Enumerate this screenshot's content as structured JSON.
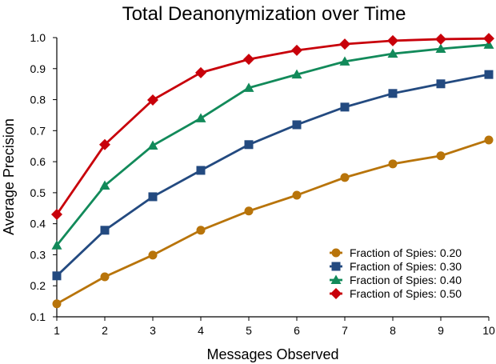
{
  "chart_data": {
    "type": "line",
    "title": "Total Deanonymization over Time",
    "xlabel": "Messages Observed",
    "ylabel": "Average Precision",
    "x": [
      1,
      2,
      3,
      4,
      5,
      6,
      7,
      8,
      9,
      10
    ],
    "xlim": [
      1,
      10
    ],
    "ylim": [
      0.1,
      1.0
    ],
    "xticks": [
      "1",
      "2",
      "3",
      "4",
      "5",
      "6",
      "7",
      "8",
      "9",
      "10"
    ],
    "yticks": [
      "0.1",
      "0.2",
      "0.3",
      "0.4",
      "0.5",
      "0.6",
      "0.7",
      "0.8",
      "0.9",
      "1.0"
    ],
    "grid": false,
    "legend_position": "bottom-right",
    "series": [
      {
        "name": "Fraction of Spies: 0.20",
        "color": "#B8740A",
        "marker": "circle",
        "values": [
          0.142,
          0.229,
          0.299,
          0.379,
          0.441,
          0.492,
          0.549,
          0.593,
          0.619,
          0.67
        ]
      },
      {
        "name": "Fraction of Spies: 0.30",
        "color": "#234A80",
        "marker": "square",
        "values": [
          0.232,
          0.379,
          0.487,
          0.572,
          0.655,
          0.719,
          0.776,
          0.82,
          0.851,
          0.881
        ]
      },
      {
        "name": "Fraction of Spies: 0.40",
        "color": "#128A5A",
        "marker": "triangle",
        "values": [
          0.33,
          0.523,
          0.652,
          0.74,
          0.838,
          0.881,
          0.923,
          0.948,
          0.964,
          0.977
        ]
      },
      {
        "name": "Fraction of Spies: 0.50",
        "color": "#C8000A",
        "marker": "diamond",
        "values": [
          0.43,
          0.655,
          0.799,
          0.887,
          0.93,
          0.959,
          0.979,
          0.99,
          0.995,
          0.997
        ]
      }
    ]
  }
}
